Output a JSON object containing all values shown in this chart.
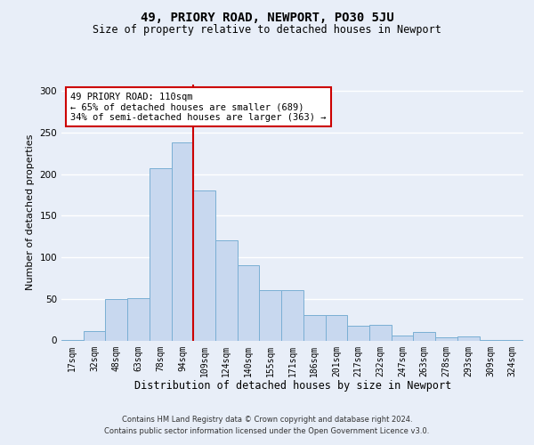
{
  "title": "49, PRIORY ROAD, NEWPORT, PO30 5JU",
  "subtitle": "Size of property relative to detached houses in Newport",
  "xlabel": "Distribution of detached houses by size in Newport",
  "ylabel": "Number of detached properties",
  "categories": [
    "17sqm",
    "32sqm",
    "48sqm",
    "63sqm",
    "78sqm",
    "94sqm",
    "109sqm",
    "124sqm",
    "140sqm",
    "155sqm",
    "171sqm",
    "186sqm",
    "201sqm",
    "217sqm",
    "232sqm",
    "247sqm",
    "263sqm",
    "278sqm",
    "293sqm",
    "309sqm",
    "324sqm"
  ],
  "bar_heights": [
    1,
    11,
    50,
    51,
    207,
    238,
    181,
    121,
    91,
    60,
    60,
    30,
    30,
    18,
    19,
    6,
    10,
    4,
    5,
    1,
    1
  ],
  "bar_color": "#c8d8ef",
  "bar_edge_color": "#7aafd4",
  "vline_pos": 6.5,
  "vline_color": "#cc0000",
  "annotation_text": "49 PRIORY ROAD: 110sqm\n← 65% of detached houses are smaller (689)\n34% of semi-detached houses are larger (363) →",
  "annotation_box_facecolor": "#ffffff",
  "annotation_box_edgecolor": "#cc0000",
  "ylim": [
    0,
    308
  ],
  "yticks": [
    0,
    50,
    100,
    150,
    200,
    250,
    300
  ],
  "footer_line1": "Contains HM Land Registry data © Crown copyright and database right 2024.",
  "footer_line2": "Contains public sector information licensed under the Open Government Licence v3.0.",
  "bg_color": "#e8eef8",
  "grid_color": "#ffffff",
  "title_fontsize": 10,
  "subtitle_fontsize": 8.5,
  "ylabel_fontsize": 8,
  "xlabel_fontsize": 8.5,
  "tick_fontsize": 7,
  "annot_fontsize": 7.5,
  "footer_fontsize": 6
}
